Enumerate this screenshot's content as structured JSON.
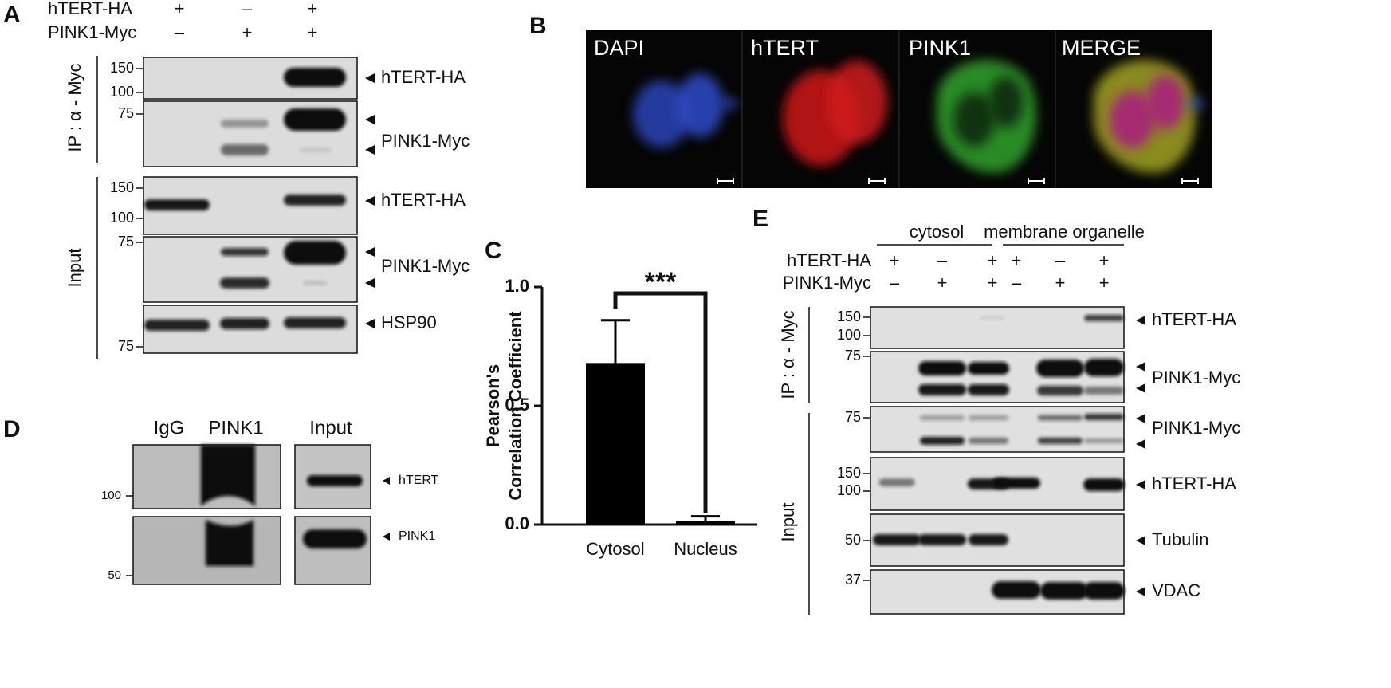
{
  "panel_a": {
    "letter": "A",
    "conditions": [
      {
        "label": "hTERT-HA",
        "signs": [
          "+",
          "–",
          "+"
        ]
      },
      {
        "label": "PINK1-Myc",
        "signs": [
          "–",
          "+",
          "+"
        ]
      }
    ],
    "groups": [
      "IP : α - Myc",
      "Input"
    ],
    "blots": [
      {
        "markers": [
          150,
          100
        ],
        "label": "hTERT-HA"
      },
      {
        "markers": [
          75
        ],
        "label": "PINK1-Myc"
      },
      {
        "markers": [
          150,
          100
        ],
        "label": "hTERT-HA"
      },
      {
        "markers": [
          75
        ],
        "label": "PINK1-Myc"
      },
      {
        "markers": [
          75
        ],
        "label": "HSP90"
      }
    ]
  },
  "panel_b": {
    "letter": "B",
    "channels": [
      "DAPI",
      "hTERT",
      "PINK1",
      "MERGE"
    ]
  },
  "panel_c": {
    "letter": "C",
    "chart": {
      "type": "bar",
      "ylabel": [
        "Pearson's",
        "Correlation Coefficient"
      ],
      "categories": [
        "Cytosol",
        "Nucleus"
      ],
      "values": [
        0.68,
        0.015
      ],
      "errors": [
        0.18,
        0.02
      ],
      "color": "#000000",
      "ylim": [
        0,
        1
      ],
      "yticks": [
        {
          "value": 0,
          "label": "0.0"
        },
        {
          "value": 0.5,
          "label": "0.5"
        },
        {
          "value": 1,
          "label": "1.0"
        }
      ],
      "annotations": [
        "***"
      ]
    }
  },
  "panel_d": {
    "letter": "D",
    "headers": [
      "IgG",
      "PINK1",
      "Input"
    ],
    "markers": [
      100,
      50
    ],
    "labels": [
      "hTERT",
      "PINK1"
    ]
  },
  "panel_e": {
    "letter": "E",
    "fractions": [
      "cytosol",
      "membrane organelle"
    ],
    "conditions": [
      {
        "label": "hTERT-HA",
        "signs": [
          "+",
          "–",
          "+",
          "+",
          "–",
          "+"
        ]
      },
      {
        "label": "PINK1-Myc",
        "signs": [
          "–",
          "+",
          "+",
          "–",
          "+",
          "+"
        ]
      }
    ],
    "groups": [
      "IP : α - Myc",
      "Input"
    ],
    "blots": [
      {
        "markers": [
          150,
          100
        ],
        "label": "hTERT-HA"
      },
      {
        "markers": [
          75
        ],
        "label": "PINK1-Myc"
      },
      {
        "markers": [
          75
        ],
        "label": "PINK1-Myc"
      },
      {
        "markers": [
          150,
          100
        ],
        "label": "hTERT-HA"
      },
      {
        "markers": [
          50
        ],
        "label": "Tubulin"
      },
      {
        "markers": [
          37
        ],
        "label": "VDAC"
      }
    ]
  }
}
